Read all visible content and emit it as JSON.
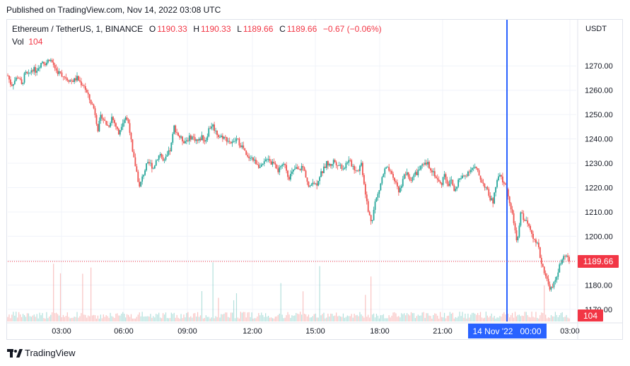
{
  "published": "Published on TradingView.com, Nov 14, 2022 03:08 UTC",
  "legend": {
    "symbol": "Ethereum / TetherUS, 1, BINANCE",
    "o_label": "O",
    "o": "1190.33",
    "h_label": "H",
    "h": "1190.33",
    "l_label": "L",
    "l": "1189.66",
    "c_label": "C",
    "c": "1189.66",
    "change": "−0.67 (−0.06%)",
    "vol_label": "Vol",
    "vol": "104"
  },
  "footer": {
    "brand": "TradingView"
  },
  "colors": {
    "up": "#26a69a",
    "down": "#ef5350",
    "crosshair": "#2962ff",
    "price_line": "#f23645",
    "grid": "#f0f3fa"
  },
  "chart_data": {
    "type": "candlestick",
    "currency": "USDT",
    "ylim": [
      1165,
      1284
    ],
    "y_ticks": [
      "1170.00",
      "1180.00",
      "1190.00",
      "1200.00",
      "1210.00",
      "1220.00",
      "1230.00",
      "1240.00",
      "1250.00",
      "1260.00",
      "1270.00"
    ],
    "x_ticks": [
      "03:00",
      "06:00",
      "09:00",
      "12:00",
      "15:00",
      "18:00",
      "21:00",
      "03:00"
    ],
    "crosshair_label": "14 Nov '22   00:00",
    "last_price": 1189.66,
    "last_price_label": "1189.66",
    "last_volume_label": "104",
    "grid": true,
    "price_path": [
      [
        0,
        1266
      ],
      [
        5,
        1262
      ],
      [
        10,
        1264
      ],
      [
        15,
        1266
      ],
      [
        20,
        1262
      ],
      [
        25,
        1267
      ],
      [
        30,
        1266
      ],
      [
        35,
        1269
      ],
      [
        40,
        1268
      ],
      [
        45,
        1270
      ],
      [
        50,
        1272
      ],
      [
        55,
        1271
      ],
      [
        60,
        1273
      ],
      [
        65,
        1271
      ],
      [
        70,
        1268
      ],
      [
        75,
        1267
      ],
      [
        80,
        1266
      ],
      [
        85,
        1265
      ],
      [
        90,
        1264
      ],
      [
        95,
        1264
      ],
      [
        100,
        1265
      ],
      [
        105,
        1263
      ],
      [
        110,
        1262
      ],
      [
        115,
        1258
      ],
      [
        120,
        1255
      ],
      [
        125,
        1252
      ],
      [
        130,
        1244
      ],
      [
        135,
        1250
      ],
      [
        140,
        1247
      ],
      [
        145,
        1245
      ],
      [
        150,
        1249
      ],
      [
        155,
        1246
      ],
      [
        160,
        1242
      ],
      [
        165,
        1247
      ],
      [
        170,
        1249
      ],
      [
        175,
        1246
      ],
      [
        180,
        1234
      ],
      [
        185,
        1228
      ],
      [
        190,
        1220
      ],
      [
        195,
        1225
      ],
      [
        200,
        1229
      ],
      [
        205,
        1230
      ],
      [
        210,
        1228
      ],
      [
        215,
        1232
      ],
      [
        220,
        1234
      ],
      [
        225,
        1230
      ],
      [
        230,
        1233
      ],
      [
        235,
        1236
      ],
      [
        240,
        1245
      ],
      [
        245,
        1242
      ],
      [
        250,
        1240
      ],
      [
        255,
        1239
      ],
      [
        260,
        1240
      ],
      [
        265,
        1241
      ],
      [
        270,
        1240
      ],
      [
        275,
        1239
      ],
      [
        280,
        1241
      ],
      [
        285,
        1239
      ],
      [
        290,
        1244
      ],
      [
        295,
        1246
      ],
      [
        300,
        1243
      ],
      [
        305,
        1241
      ],
      [
        310,
        1241
      ],
      [
        315,
        1240
      ],
      [
        320,
        1239
      ],
      [
        325,
        1238
      ],
      [
        330,
        1240
      ],
      [
        335,
        1238
      ],
      [
        340,
        1236
      ],
      [
        345,
        1232
      ],
      [
        350,
        1233
      ],
      [
        355,
        1231
      ],
      [
        360,
        1230
      ],
      [
        365,
        1228
      ],
      [
        370,
        1230
      ],
      [
        375,
        1233
      ],
      [
        380,
        1230
      ],
      [
        385,
        1231
      ],
      [
        390,
        1227
      ],
      [
        395,
        1228
      ],
      [
        400,
        1230
      ],
      [
        405,
        1224
      ],
      [
        410,
        1226
      ],
      [
        415,
        1228
      ],
      [
        420,
        1227
      ],
      [
        425,
        1229
      ],
      [
        430,
        1225
      ],
      [
        435,
        1219
      ],
      [
        440,
        1223
      ],
      [
        445,
        1221
      ],
      [
        450,
        1225
      ],
      [
        455,
        1227
      ],
      [
        460,
        1230
      ],
      [
        465,
        1229
      ],
      [
        470,
        1231
      ],
      [
        475,
        1230
      ],
      [
        480,
        1229
      ],
      [
        485,
        1228
      ],
      [
        490,
        1231
      ],
      [
        495,
        1230
      ],
      [
        500,
        1228
      ],
      [
        505,
        1227
      ],
      [
        510,
        1230
      ],
      [
        515,
        1220
      ],
      [
        520,
        1210
      ],
      [
        525,
        1206
      ],
      [
        530,
        1214
      ],
      [
        535,
        1218
      ],
      [
        540,
        1224
      ],
      [
        545,
        1228
      ],
      [
        550,
        1227
      ],
      [
        555,
        1224
      ],
      [
        560,
        1222
      ],
      [
        565,
        1218
      ],
      [
        570,
        1224
      ],
      [
        575,
        1226
      ],
      [
        580,
        1223
      ],
      [
        585,
        1225
      ],
      [
        590,
        1226
      ],
      [
        595,
        1228
      ],
      [
        600,
        1229
      ],
      [
        605,
        1230
      ],
      [
        610,
        1228
      ],
      [
        615,
        1226
      ],
      [
        620,
        1223
      ],
      [
        625,
        1221
      ],
      [
        630,
        1226
      ],
      [
        635,
        1221
      ],
      [
        640,
        1223
      ],
      [
        645,
        1218
      ],
      [
        650,
        1223
      ],
      [
        655,
        1224
      ],
      [
        660,
        1225
      ],
      [
        665,
        1227
      ],
      [
        670,
        1228
      ],
      [
        675,
        1228
      ],
      [
        680,
        1225
      ],
      [
        685,
        1222
      ],
      [
        690,
        1220
      ],
      [
        695,
        1216
      ],
      [
        700,
        1214
      ],
      [
        705,
        1222
      ],
      [
        710,
        1225
      ],
      [
        715,
        1222
      ],
      [
        720,
        1220
      ],
      [
        725,
        1212
      ],
      [
        730,
        1206
      ],
      [
        735,
        1196
      ],
      [
        740,
        1210
      ],
      [
        745,
        1207
      ],
      [
        750,
        1205
      ],
      [
        755,
        1203
      ],
      [
        760,
        1198
      ],
      [
        765,
        1196
      ],
      [
        770,
        1189
      ],
      [
        775,
        1185
      ],
      [
        780,
        1180
      ],
      [
        785,
        1178
      ],
      [
        790,
        1182
      ],
      [
        795,
        1187
      ],
      [
        800,
        1190
      ],
      [
        805,
        1192
      ],
      [
        810,
        1189.66
      ]
    ]
  }
}
